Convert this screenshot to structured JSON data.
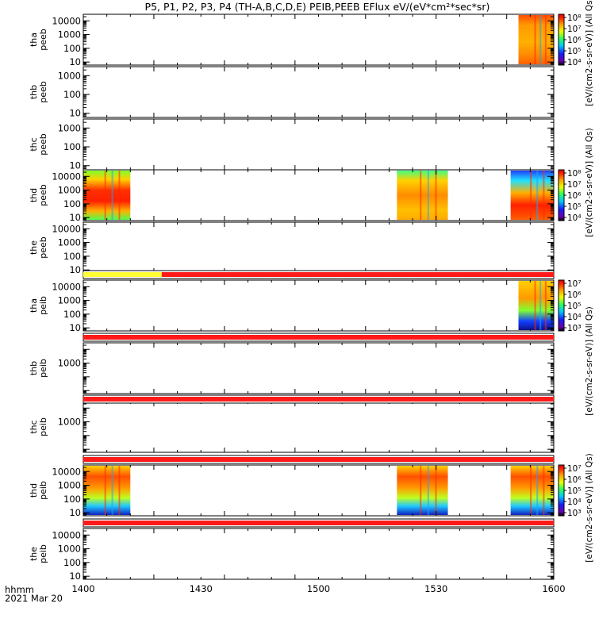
{
  "title": "P5, P1, P2, P3, P4 (TH-A,B,C,D,E) PEIB,PEEB EFlux eV/(eV*cm²*sec*sr)",
  "colors": {
    "red": "#ff1a1a",
    "yellow": "#ffff33"
  },
  "chart_data": [
    {
      "type": "heatmap",
      "panel": "tha_peeb",
      "ylabel": [
        "tha",
        "peeb"
      ],
      "yticks": [
        "10000",
        "1000",
        "100",
        "10"
      ],
      "ylog": true,
      "ylim": [
        6,
        30000
      ],
      "x_range": [
        "1400",
        "1600"
      ],
      "data_intervals": [
        [
          "1551",
          "1600"
        ]
      ],
      "colorbar": {
        "label": "[eV/(cm2-s-sr-eV)] (All Qs)",
        "labels": [
          "10⁸",
          "10⁷",
          "10⁶",
          "10⁵",
          "10⁴"
        ]
      }
    },
    {
      "type": "heatmap",
      "panel": "thb_peeb",
      "ylabel": [
        "thb",
        "peeb"
      ],
      "yticks": [
        "1000",
        "100",
        "10"
      ],
      "ylog": true,
      "ylim": [
        6,
        3000
      ],
      "x_range": [
        "1400",
        "1600"
      ],
      "data_intervals": []
    },
    {
      "type": "heatmap",
      "panel": "thc_peeb",
      "ylabel": [
        "thc",
        "peeb"
      ],
      "yticks": [
        "1000",
        "100",
        "10"
      ],
      "ylog": true,
      "ylim": [
        6,
        3000
      ],
      "x_range": [
        "1400",
        "1600"
      ],
      "data_intervals": []
    },
    {
      "type": "heatmap",
      "panel": "thd_peeb",
      "ylabel": [
        "thd",
        "peeb"
      ],
      "yticks": [
        "10000",
        "1000",
        "100",
        "10"
      ],
      "ylog": true,
      "ylim": [
        6,
        30000
      ],
      "x_range": [
        "1400",
        "1600"
      ],
      "data_intervals": [
        [
          "1400",
          "1412"
        ],
        [
          "1520",
          "1533"
        ],
        [
          "1549",
          "1600"
        ]
      ],
      "colorbar": {
        "label": "[eV/(cm2-s-sr-eV)] (All Qs)",
        "labels": [
          "10⁸",
          "10⁷",
          "10⁶",
          "10⁵",
          "10⁴"
        ]
      }
    },
    {
      "type": "heatmap",
      "panel": "the_peeb",
      "ylabel": [
        "the",
        "peeb"
      ],
      "yticks": [
        "10000",
        "1000",
        "100",
        "10"
      ],
      "ylog": true,
      "ylim": [
        6,
        30000
      ],
      "x_range": [
        "1400",
        "1600"
      ],
      "data_intervals": [],
      "colorbar": {
        "label": "[eV/(cm2-s-sr-eV)] (All Qs)"
      }
    },
    {
      "type": "heatmap",
      "panel": "tha_peib",
      "ylabel": [
        "tha",
        "peib"
      ],
      "yticks": [
        "10000",
        "1000",
        "100",
        "10"
      ],
      "ylog": true,
      "ylim": [
        6,
        30000
      ],
      "x_range": [
        "1400",
        "1600"
      ],
      "data_intervals": [
        [
          "1551",
          "1600"
        ]
      ],
      "colorbar": {
        "label": "[eV/(cm2-s-sr-eV)] (All Qs)",
        "labels": [
          "10⁷",
          "10⁶",
          "10⁵",
          "10⁴",
          "10³"
        ]
      }
    },
    {
      "type": "heatmap",
      "panel": "thb_peib",
      "ylabel": [
        "thb",
        "peib"
      ],
      "yticks": [
        "1000"
      ],
      "ylog": true,
      "ylim": [
        6,
        30000
      ],
      "x_range": [
        "1400",
        "1600"
      ],
      "data_intervals": []
    },
    {
      "type": "heatmap",
      "panel": "thc_peib",
      "ylabel": [
        "thc",
        "peib"
      ],
      "yticks": [
        "1000"
      ],
      "ylog": true,
      "ylim": [
        6,
        30000
      ],
      "x_range": [
        "1400",
        "1600"
      ],
      "data_intervals": []
    },
    {
      "type": "heatmap",
      "panel": "thd_peib",
      "ylabel": [
        "thd",
        "peib"
      ],
      "yticks": [
        "10000",
        "1000",
        "100",
        "10"
      ],
      "ylog": true,
      "ylim": [
        6,
        30000
      ],
      "x_range": [
        "1400",
        "1600"
      ],
      "data_intervals": [
        [
          "1400",
          "1412"
        ],
        [
          "1520",
          "1533"
        ],
        [
          "1549",
          "1600"
        ]
      ],
      "colorbar": {
        "label": "[eV/(cm2-s-sr-eV)] (All Qs)",
        "labels": [
          "10⁷",
          "10⁶",
          "10⁵",
          "10⁴",
          "10³"
        ]
      }
    },
    {
      "type": "heatmap",
      "panel": "the_peib",
      "ylabel": [
        "the",
        "peib"
      ],
      "yticks": [
        "10000",
        "1000",
        "100",
        "10"
      ],
      "ylog": true,
      "ylim": [
        6,
        30000
      ],
      "x_range": [
        "1400",
        "1600"
      ],
      "data_intervals": []
    }
  ],
  "status_bars": [
    {
      "segments": [
        {
          "from": "1400",
          "to": "1420",
          "color": "yellow"
        },
        {
          "from": "1420",
          "to": "1600",
          "color": "red"
        }
      ]
    },
    {
      "segments": [
        {
          "from": "1400",
          "to": "1600",
          "color": "red"
        }
      ]
    },
    {
      "segments": [
        {
          "from": "1400",
          "to": "1600",
          "color": "red"
        }
      ]
    },
    {
      "segments": [
        {
          "from": "1400",
          "to": "1600",
          "color": "red"
        }
      ]
    },
    {
      "segments": [
        {
          "from": "1400",
          "to": "1600",
          "color": "red"
        }
      ]
    }
  ],
  "x_axis": {
    "ticks": [
      "1400",
      "1430",
      "1500",
      "1530",
      "1600"
    ],
    "unit_label": "hhmm",
    "date_label": "2021 Mar 20"
  }
}
